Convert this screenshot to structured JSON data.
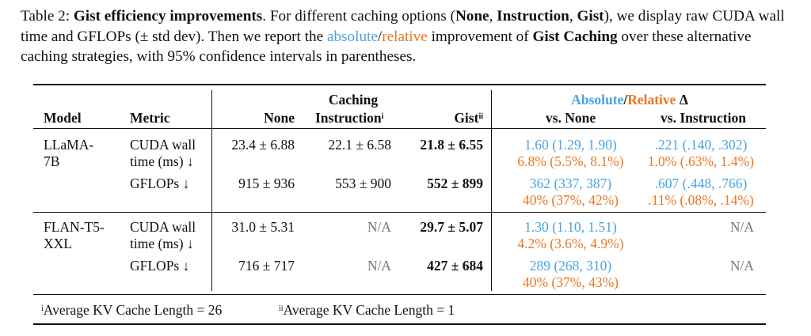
{
  "caption": {
    "label": "Table 2:",
    "title": "Gist efficiency improvements",
    "part1": ". For different caching options (",
    "opt1": "None",
    "sep1": ", ",
    "opt2": "Instruction",
    "sep2": ", ",
    "opt3": "Gist",
    "part2": "), we display raw CUDA wall time and GFLOPs (± std dev). Then we report the ",
    "absolute": "absolute",
    "slash": "/",
    "relative": "relative",
    "part3": " improvement of ",
    "gist_caching": "Gist Caching",
    "part4": " over these alternative caching strategies, with 95% confidence intervals in parentheses."
  },
  "header": {
    "model": "Model",
    "metric": "Metric",
    "caching": "Caching",
    "none": "None",
    "instruction": "Instruction",
    "instruction_sup": "i",
    "gist": "Gist",
    "gist_sup": "ii",
    "absolute": "Absolute",
    "slash": "/",
    "relative": "Relative",
    "delta": " Δ",
    "vs_none": "vs. None",
    "vs_instruction": "vs. Instruction"
  },
  "rows": [
    {
      "model_l1": "LLaMA-",
      "model_l2": "7B",
      "metric_l1": "CUDA wall",
      "metric_l2": "time (ms) ↓",
      "none": "23.4 ± 6.88",
      "instruction": "22.1 ± 6.58",
      "gist": "21.8 ± 6.55",
      "vs_none_abs": "1.60 (1.29, 1.90)",
      "vs_none_rel": "6.8% (5.5%, 8.1%)",
      "vs_instr_abs": ".221 (.140, .302)",
      "vs_instr_rel": "1.0% (.63%, 1.4%)"
    },
    {
      "metric_l1": "GFLOPs ↓",
      "none": "915 ± 936",
      "instruction": "553 ± 900",
      "gist": "552 ± 899",
      "vs_none_abs": "362 (337, 387)",
      "vs_none_rel": "40% (37%, 42%)",
      "vs_instr_abs": ".607 (.448, .766)",
      "vs_instr_rel": ".11% (.08%, .14%)"
    },
    {
      "model_l1": "FLAN-T5-",
      "model_l2": "XXL",
      "metric_l1": "CUDA wall",
      "metric_l2": "time (ms) ↓",
      "none": "31.0 ± 5.31",
      "instruction": "N/A",
      "gist": "29.7 ± 5.07",
      "vs_none_abs": "1.30 (1.10, 1.51)",
      "vs_none_rel": "4.2% (3.6%, 4.9%)",
      "vs_instr": "N/A"
    },
    {
      "metric_l1": "GFLOPs ↓",
      "none": "716 ± 717",
      "instruction": "N/A",
      "gist": "427 ± 684",
      "vs_none_abs": "289 (268, 310)",
      "vs_none_rel": "40% (37%, 43%)",
      "vs_instr": "N/A"
    }
  ],
  "footnotes": {
    "i_mark": "i",
    "i_text": "Average KV Cache Length = 26",
    "ii_mark": "ii",
    "ii_text": "Average KV Cache Length = 1"
  },
  "colors": {
    "absolute": "#4aa3df",
    "relative": "#e87722"
  }
}
